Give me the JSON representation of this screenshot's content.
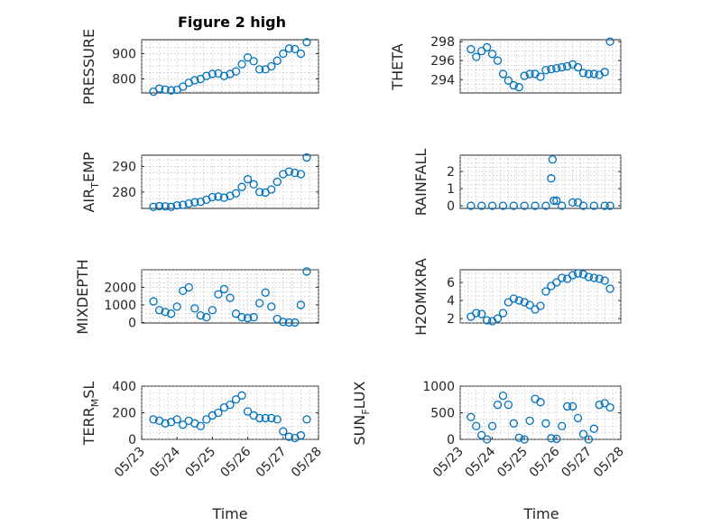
{
  "figure": {
    "title": "Figure 2 high",
    "marker_color": "#0072BD",
    "x_start": "2017-05-23",
    "x_end": "2017-05-28",
    "x_ticks": [
      "05/23",
      "05/24",
      "05/25",
      "05/26",
      "05/27",
      "05/28"
    ],
    "x_label": "Time"
  },
  "chart_data": [
    {
      "type": "scatter",
      "ylabel": "PRESSURE",
      "ylim": [
        745,
        955
      ],
      "yticks": [
        800,
        900
      ],
      "grid": true,
      "x": [
        "2017-05-23T08:00",
        "2017-05-23T12:00",
        "2017-05-23T16:00",
        "2017-05-23T20:00",
        "2017-05-24T00:00",
        "2017-05-24T04:00",
        "2017-05-24T08:00",
        "2017-05-24T12:00",
        "2017-05-24T16:00",
        "2017-05-24T20:00",
        "2017-05-25T00:00",
        "2017-05-25T04:00",
        "2017-05-25T08:00",
        "2017-05-25T12:00",
        "2017-05-25T16:00",
        "2017-05-25T20:00",
        "2017-05-26T00:00",
        "2017-05-26T04:00",
        "2017-05-26T08:00",
        "2017-05-26T12:00",
        "2017-05-26T16:00",
        "2017-05-26T20:00",
        "2017-05-27T00:00",
        "2017-05-27T04:00",
        "2017-05-27T08:00",
        "2017-05-27T12:00",
        "2017-05-27T16:00"
      ],
      "y": [
        750,
        762,
        758,
        755,
        757,
        770,
        785,
        795,
        800,
        812,
        820,
        822,
        812,
        820,
        830,
        858,
        885,
        870,
        838,
        838,
        850,
        872,
        900,
        920,
        918,
        900,
        945
      ]
    },
    {
      "type": "scatter",
      "ylabel": "THETA",
      "ylim": [
        292.6,
        298.2
      ],
      "yticks": [
        294,
        296,
        298
      ],
      "grid": true,
      "x": [
        "2017-05-23T08:00",
        "2017-05-23T12:00",
        "2017-05-23T16:00",
        "2017-05-23T20:00",
        "2017-05-24T00:00",
        "2017-05-24T04:00",
        "2017-05-24T08:00",
        "2017-05-24T12:00",
        "2017-05-24T16:00",
        "2017-05-24T20:00",
        "2017-05-25T00:00",
        "2017-05-25T04:00",
        "2017-05-25T08:00",
        "2017-05-25T12:00",
        "2017-05-25T16:00",
        "2017-05-25T20:00",
        "2017-05-26T00:00",
        "2017-05-26T04:00",
        "2017-05-26T08:00",
        "2017-05-26T12:00",
        "2017-05-26T16:00",
        "2017-05-26T20:00",
        "2017-05-27T00:00",
        "2017-05-27T04:00",
        "2017-05-27T08:00",
        "2017-05-27T12:00",
        "2017-05-27T16:00"
      ],
      "y": [
        297.2,
        296.4,
        297.0,
        297.4,
        296.7,
        296.0,
        294.6,
        293.9,
        293.4,
        293.2,
        294.4,
        294.6,
        294.6,
        294.3,
        295.0,
        295.1,
        295.2,
        295.3,
        295.4,
        295.6,
        295.3,
        294.7,
        294.6,
        294.6,
        294.5,
        294.8,
        298.0
      ]
    },
    {
      "type": "scatter",
      "ylabel": "AIR_TEMP",
      "ylim": [
        273.6,
        294.4
      ],
      "yticks": [
        280,
        290
      ],
      "grid": true,
      "x": [
        "2017-05-23T08:00",
        "2017-05-23T12:00",
        "2017-05-23T16:00",
        "2017-05-23T20:00",
        "2017-05-24T00:00",
        "2017-05-24T04:00",
        "2017-05-24T08:00",
        "2017-05-24T12:00",
        "2017-05-24T16:00",
        "2017-05-24T20:00",
        "2017-05-25T00:00",
        "2017-05-25T04:00",
        "2017-05-25T08:00",
        "2017-05-25T12:00",
        "2017-05-25T16:00",
        "2017-05-25T20:00",
        "2017-05-26T00:00",
        "2017-05-26T04:00",
        "2017-05-26T08:00",
        "2017-05-26T12:00",
        "2017-05-26T16:00",
        "2017-05-26T20:00",
        "2017-05-27T00:00",
        "2017-05-27T04:00",
        "2017-05-27T08:00",
        "2017-05-27T12:00",
        "2017-05-27T16:00"
      ],
      "y": [
        274.2,
        274.5,
        274.4,
        274.2,
        274.8,
        275.0,
        275.5,
        276.0,
        276.2,
        277.0,
        278.0,
        278.2,
        277.8,
        278.5,
        279.5,
        282.0,
        285.0,
        283.0,
        280.0,
        279.8,
        281.0,
        284.0,
        287.0,
        288.0,
        287.5,
        287.0,
        293.5
      ]
    },
    {
      "type": "scatter",
      "ylabel": "RAINFALL",
      "ylim": [
        -0.15,
        2.95
      ],
      "yticks": [
        0,
        1,
        2
      ],
      "grid": true,
      "x": [
        "2017-05-23T08:00",
        "2017-05-23T16:00",
        "2017-05-24T00:00",
        "2017-05-24T08:00",
        "2017-05-24T16:00",
        "2017-05-25T00:00",
        "2017-05-25T08:00",
        "2017-05-25T16:00",
        "2017-05-25T20:00",
        "2017-05-25T21:00",
        "2017-05-25T22:00",
        "2017-05-26T00:00",
        "2017-05-26T04:00",
        "2017-05-26T12:00",
        "2017-05-26T16:00",
        "2017-05-26T20:00",
        "2017-05-27T04:00",
        "2017-05-27T12:00",
        "2017-05-27T16:00"
      ],
      "y": [
        0,
        0,
        0,
        0,
        0,
        0,
        0,
        0,
        1.6,
        2.7,
        0.3,
        0.3,
        0,
        0.2,
        0.2,
        0,
        0,
        0,
        0
      ]
    },
    {
      "type": "scatter",
      "ylabel": "MIXDEPTH",
      "ylim": [
        -30,
        3000
      ],
      "yticks": [
        0,
        1000,
        2000
      ],
      "grid": true,
      "x": [
        "2017-05-23T08:00",
        "2017-05-23T12:00",
        "2017-05-23T16:00",
        "2017-05-23T20:00",
        "2017-05-24T00:00",
        "2017-05-24T04:00",
        "2017-05-24T08:00",
        "2017-05-24T12:00",
        "2017-05-24T16:00",
        "2017-05-24T20:00",
        "2017-05-25T00:00",
        "2017-05-25T04:00",
        "2017-05-25T08:00",
        "2017-05-25T12:00",
        "2017-05-25T16:00",
        "2017-05-25T20:00",
        "2017-05-26T00:00",
        "2017-05-26T04:00",
        "2017-05-26T08:00",
        "2017-05-26T12:00",
        "2017-05-26T16:00",
        "2017-05-26T20:00",
        "2017-05-27T00:00",
        "2017-05-27T04:00",
        "2017-05-27T08:00",
        "2017-05-27T12:00",
        "2017-05-27T16:00"
      ],
      "y": [
        1200,
        700,
        600,
        500,
        900,
        1800,
        2000,
        800,
        400,
        300,
        700,
        1600,
        1900,
        1400,
        500,
        300,
        250,
        300,
        1100,
        1700,
        900,
        200,
        30,
        0,
        0,
        1000,
        2900
      ]
    },
    {
      "type": "scatter",
      "ylabel": "H2OMIXRA",
      "ylim": [
        1.5,
        7.4
      ],
      "yticks": [
        2,
        4,
        6
      ],
      "grid": true,
      "x": [
        "2017-05-23T08:00",
        "2017-05-23T12:00",
        "2017-05-23T16:00",
        "2017-05-23T20:00",
        "2017-05-24T00:00",
        "2017-05-24T04:00",
        "2017-05-24T08:00",
        "2017-05-24T12:00",
        "2017-05-24T16:00",
        "2017-05-24T20:00",
        "2017-05-25T00:00",
        "2017-05-25T04:00",
        "2017-05-25T08:00",
        "2017-05-25T12:00",
        "2017-05-25T16:00",
        "2017-05-25T20:00",
        "2017-05-26T00:00",
        "2017-05-26T04:00",
        "2017-05-26T08:00",
        "2017-05-26T12:00",
        "2017-05-26T16:00",
        "2017-05-26T20:00",
        "2017-05-27T00:00",
        "2017-05-27T04:00",
        "2017-05-27T08:00",
        "2017-05-27T12:00",
        "2017-05-27T16:00"
      ],
      "y": [
        2.2,
        2.6,
        2.5,
        1.8,
        1.7,
        2.0,
        2.6,
        3.8,
        4.2,
        4.0,
        3.8,
        3.5,
        3.0,
        3.4,
        5.0,
        5.6,
        6.0,
        6.5,
        6.4,
        6.8,
        7.0,
        6.9,
        6.6,
        6.5,
        6.4,
        6.2,
        5.3
      ]
    },
    {
      "type": "scatter",
      "ylabel": "TERR_MSL",
      "ylim": [
        0,
        400
      ],
      "yticks": [
        0,
        200,
        400
      ],
      "grid": true,
      "x": [
        "2017-05-23T08:00",
        "2017-05-23T12:00",
        "2017-05-23T16:00",
        "2017-05-23T20:00",
        "2017-05-24T00:00",
        "2017-05-24T04:00",
        "2017-05-24T08:00",
        "2017-05-24T12:00",
        "2017-05-24T16:00",
        "2017-05-24T20:00",
        "2017-05-25T00:00",
        "2017-05-25T04:00",
        "2017-05-25T08:00",
        "2017-05-25T12:00",
        "2017-05-25T16:00",
        "2017-05-25T20:00",
        "2017-05-26T00:00",
        "2017-05-26T04:00",
        "2017-05-26T08:00",
        "2017-05-26T12:00",
        "2017-05-26T16:00",
        "2017-05-26T20:00",
        "2017-05-27T00:00",
        "2017-05-27T04:00",
        "2017-05-27T08:00",
        "2017-05-27T12:00",
        "2017-05-27T16:00"
      ],
      "y": [
        150,
        140,
        120,
        130,
        150,
        110,
        140,
        120,
        100,
        150,
        180,
        200,
        240,
        260,
        300,
        330,
        210,
        180,
        160,
        160,
        160,
        150,
        60,
        20,
        10,
        30,
        150
      ]
    },
    {
      "type": "scatter",
      "ylabel": "SUN_FLUX",
      "ylim": [
        0,
        1000
      ],
      "yticks": [
        0,
        500,
        1000
      ],
      "grid": true,
      "x": [
        "2017-05-23T08:00",
        "2017-05-23T12:00",
        "2017-05-23T16:00",
        "2017-05-23T20:00",
        "2017-05-24T00:00",
        "2017-05-24T04:00",
        "2017-05-24T08:00",
        "2017-05-24T12:00",
        "2017-05-24T16:00",
        "2017-05-24T20:00",
        "2017-05-25T00:00",
        "2017-05-25T04:00",
        "2017-05-25T08:00",
        "2017-05-25T12:00",
        "2017-05-25T16:00",
        "2017-05-25T20:00",
        "2017-05-26T00:00",
        "2017-05-26T04:00",
        "2017-05-26T08:00",
        "2017-05-26T12:00",
        "2017-05-26T16:00",
        "2017-05-26T20:00",
        "2017-05-27T00:00",
        "2017-05-27T04:00",
        "2017-05-27T08:00",
        "2017-05-27T12:00",
        "2017-05-27T16:00"
      ],
      "y": [
        420,
        250,
        80,
        0,
        250,
        650,
        820,
        650,
        300,
        30,
        0,
        350,
        760,
        700,
        300,
        20,
        10,
        250,
        620,
        620,
        400,
        100,
        0,
        200,
        650,
        680,
        600
      ]
    }
  ]
}
